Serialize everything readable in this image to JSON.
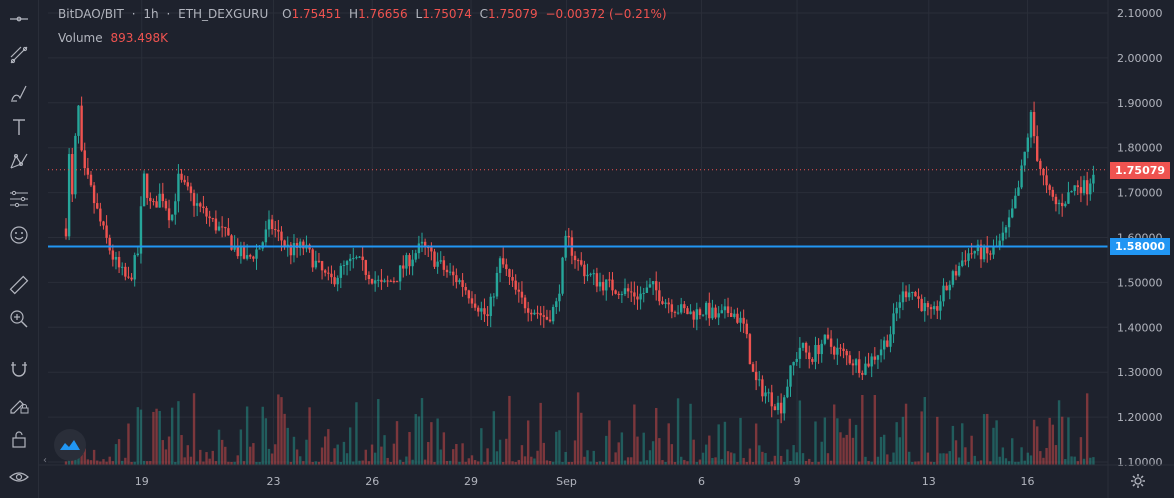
{
  "legend": {
    "symbol": "BitDAO/BIT",
    "interval": "1h",
    "source": "ETH_DEXGURU",
    "open_key": "O",
    "open": "1.75451",
    "high_key": "H",
    "high": "1.76656",
    "low_key": "L",
    "low": "1.75074",
    "close_key": "C",
    "close": "1.75079",
    "change": "−0.00372 (−0.21%)",
    "volume_label": "Volume",
    "volume_value": "893.498K"
  },
  "price_tags": {
    "current": "1.75079",
    "level": "1.58000"
  },
  "colors": {
    "up": "#26a69a",
    "down": "#ef5350",
    "level_line": "#2196f3",
    "current_tag": "#ef5350",
    "level_tag": "#2196f3",
    "background": "#1e222d",
    "grid": "#2a2e39"
  },
  "toolbar_icons": [
    "crosshair-icon",
    "trend-line-icon",
    "brush-icon",
    "text-icon",
    "pattern-icon",
    "prediction-icon",
    "emoji-icon",
    "ruler-icon",
    "zoom-in-icon",
    "magnet-icon",
    "lock-drawing-icon",
    "lock-icon",
    "eye-icon"
  ],
  "chart_data": {
    "type": "candlestick",
    "symbol": "BitDAO/BIT",
    "interval": "1h",
    "y_axis": {
      "ticks": [
        "2.10000",
        "2.00000",
        "1.90000",
        "1.80000",
        "1.70000",
        "1.60000",
        "1.50000",
        "1.40000",
        "1.30000",
        "1.20000",
        "1.10000"
      ],
      "range": [
        1.1,
        2.1
      ]
    },
    "x_axis": {
      "ticks": [
        "19",
        "23",
        "26",
        "29",
        "Sep",
        "6",
        "9",
        "13",
        "16"
      ]
    },
    "horizontal_level": 1.58,
    "current_price": 1.75079,
    "close_path": [
      [
        17.0,
        1.62
      ],
      [
        17.05,
        2.02
      ],
      [
        17.1,
        1.75
      ],
      [
        17.2,
        1.68
      ],
      [
        17.35,
        1.92
      ],
      [
        17.5,
        1.75
      ],
      [
        17.7,
        1.72
      ],
      [
        17.85,
        1.68
      ],
      [
        18.1,
        1.62
      ],
      [
        18.4,
        1.56
      ],
      [
        18.6,
        1.53
      ],
      [
        18.9,
        1.5
      ],
      [
        19.2,
        1.57
      ],
      [
        19.35,
        1.74
      ],
      [
        19.6,
        1.66
      ],
      [
        19.9,
        1.7
      ],
      [
        20.2,
        1.64
      ],
      [
        20.4,
        1.73
      ],
      [
        20.6,
        1.71
      ],
      [
        21.0,
        1.67
      ],
      [
        21.5,
        1.63
      ],
      [
        21.9,
        1.6
      ],
      [
        22.2,
        1.57
      ],
      [
        22.5,
        1.55
      ],
      [
        22.9,
        1.58
      ],
      [
        23.2,
        1.63
      ],
      [
        23.5,
        1.6
      ],
      [
        23.8,
        1.57
      ],
      [
        24.2,
        1.58
      ],
      [
        24.6,
        1.54
      ],
      [
        25.0,
        1.5
      ],
      [
        25.4,
        1.53
      ],
      [
        25.8,
        1.55
      ],
      [
        26.2,
        1.52
      ],
      [
        26.6,
        1.49
      ],
      [
        27.0,
        1.51
      ],
      [
        27.4,
        1.55
      ],
      [
        27.8,
        1.58
      ],
      [
        28.2,
        1.55
      ],
      [
        28.6,
        1.52
      ],
      [
        29.0,
        1.5
      ],
      [
        29.4,
        1.46
      ],
      [
        29.8,
        1.42
      ],
      [
        30.2,
        1.55
      ],
      [
        30.5,
        1.5
      ],
      [
        30.8,
        1.46
      ],
      [
        31.2,
        1.44
      ],
      [
        31.6,
        1.42
      ],
      [
        31.9,
        1.45
      ],
      [
        32.2,
        1.6
      ],
      [
        32.5,
        1.55
      ],
      [
        32.8,
        1.52
      ],
      [
        33.2,
        1.5
      ],
      [
        33.6,
        1.49
      ],
      [
        34.0,
        1.48
      ],
      [
        34.4,
        1.47
      ],
      [
        34.8,
        1.49
      ],
      [
        35.2,
        1.46
      ],
      [
        35.6,
        1.44
      ],
      [
        36.0,
        1.43
      ],
      [
        36.4,
        1.44
      ],
      [
        36.8,
        1.42
      ],
      [
        37.2,
        1.44
      ],
      [
        37.6,
        1.4
      ],
      [
        37.9,
        1.28
      ],
      [
        38.3,
        1.25
      ],
      [
        38.7,
        1.22
      ],
      [
        39.0,
        1.3
      ],
      [
        39.3,
        1.36
      ],
      [
        39.6,
        1.33
      ],
      [
        40.0,
        1.37
      ],
      [
        40.4,
        1.35
      ],
      [
        40.8,
        1.33
      ],
      [
        41.2,
        1.31
      ],
      [
        41.6,
        1.34
      ],
      [
        42.0,
        1.38
      ],
      [
        42.3,
        1.46
      ],
      [
        42.6,
        1.49
      ],
      [
        43.0,
        1.45
      ],
      [
        43.3,
        1.42
      ],
      [
        43.6,
        1.47
      ],
      [
        44.0,
        1.52
      ],
      [
        44.3,
        1.56
      ],
      [
        44.6,
        1.57
      ],
      [
        45.0,
        1.56
      ],
      [
        45.3,
        1.58
      ],
      [
        45.6,
        1.62
      ],
      [
        45.9,
        1.7
      ],
      [
        46.1,
        1.78
      ],
      [
        46.3,
        1.87
      ],
      [
        46.5,
        1.78
      ],
      [
        46.8,
        1.7
      ],
      [
        47.1,
        1.67
      ],
      [
        47.4,
        1.69
      ],
      [
        47.7,
        1.72
      ],
      [
        48.0,
        1.71
      ],
      [
        48.2,
        1.75
      ]
    ]
  }
}
